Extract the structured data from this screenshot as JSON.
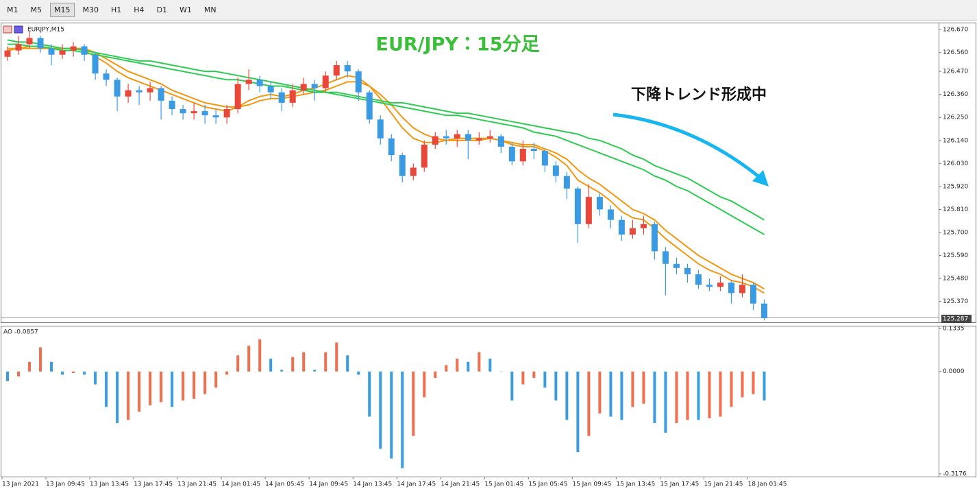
{
  "toolbar": {
    "timeframes": [
      "M1",
      "M5",
      "M15",
      "M30",
      "H1",
      "H4",
      "D1",
      "W1",
      "MN"
    ]
  },
  "chart_data": [
    {
      "type": "candlestick",
      "symbol_label": "EURJPY,M15",
      "title": "EUR/JPY：15分足",
      "annotation": "下降トレンド形成中",
      "up_color": "#e8483a",
      "down_color": "#3a9ae2",
      "open": [
        126.54,
        126.57,
        126.6,
        126.63,
        126.58,
        126.55,
        126.57,
        126.59,
        126.55,
        126.46,
        126.43,
        126.35,
        126.38,
        126.37,
        126.39,
        126.33,
        126.29,
        126.27,
        126.28,
        126.26,
        126.25,
        126.29,
        126.41,
        126.43,
        126.4,
        126.37,
        126.32,
        126.38,
        126.41,
        126.39,
        126.45,
        126.5,
        126.47,
        126.37,
        126.24,
        126.15,
        126.07,
        125.97,
        126.01,
        126.12,
        126.16,
        126.15,
        126.17,
        126.14,
        126.15,
        126.16,
        126.11,
        126.04,
        126.1,
        126.09,
        126.02,
        125.97,
        125.91,
        125.74,
        125.87,
        125.81,
        125.76,
        125.69,
        125.72,
        125.74,
        125.61,
        125.55,
        125.53,
        125.5,
        125.45,
        125.44,
        125.46,
        125.41,
        125.45,
        125.36
      ],
      "high": [
        126.59,
        126.64,
        126.66,
        126.64,
        126.6,
        126.6,
        126.61,
        126.6,
        126.56,
        126.48,
        126.44,
        126.41,
        126.4,
        126.42,
        126.4,
        126.35,
        126.31,
        126.32,
        126.31,
        126.29,
        126.31,
        126.44,
        126.48,
        126.45,
        126.42,
        126.39,
        126.41,
        126.44,
        126.43,
        126.47,
        126.52,
        126.52,
        126.48,
        126.38,
        126.26,
        126.17,
        126.08,
        126.03,
        126.14,
        126.18,
        126.19,
        126.19,
        126.19,
        126.18,
        126.19,
        126.17,
        126.13,
        126.14,
        126.13,
        126.1,
        126.04,
        125.99,
        125.92,
        125.93,
        125.89,
        125.83,
        125.78,
        125.76,
        125.78,
        125.75,
        125.63,
        125.58,
        125.55,
        125.52,
        125.48,
        125.49,
        125.47,
        125.5,
        125.46,
        125.38
      ],
      "low": [
        126.52,
        126.55,
        126.58,
        126.56,
        126.5,
        126.53,
        126.54,
        126.52,
        126.43,
        126.4,
        126.28,
        126.32,
        126.31,
        126.33,
        126.24,
        126.26,
        126.24,
        126.24,
        126.22,
        126.22,
        126.22,
        126.27,
        126.38,
        126.37,
        126.34,
        126.28,
        126.3,
        126.36,
        126.33,
        126.37,
        126.43,
        126.44,
        126.33,
        126.22,
        126.12,
        126.04,
        125.94,
        125.95,
        125.99,
        126.1,
        126.12,
        126.11,
        126.05,
        126.12,
        126.13,
        126.08,
        126.02,
        126.02,
        126.05,
        125.99,
        125.94,
        125.86,
        125.65,
        125.72,
        125.78,
        125.72,
        125.66,
        125.67,
        125.69,
        125.57,
        125.4,
        125.5,
        125.46,
        125.43,
        125.42,
        125.42,
        125.36,
        125.39,
        125.33,
        125.28
      ],
      "close": [
        126.57,
        126.6,
        126.63,
        126.58,
        126.55,
        126.57,
        126.59,
        126.55,
        126.46,
        126.43,
        126.35,
        126.38,
        126.37,
        126.39,
        126.33,
        126.29,
        126.27,
        126.28,
        126.26,
        126.25,
        126.29,
        126.41,
        126.43,
        126.4,
        126.37,
        126.32,
        126.38,
        126.41,
        126.39,
        126.45,
        126.5,
        126.47,
        126.37,
        126.24,
        126.15,
        126.07,
        125.97,
        126.01,
        126.12,
        126.16,
        126.15,
        126.17,
        126.14,
        126.15,
        126.16,
        126.11,
        126.04,
        126.1,
        126.09,
        126.02,
        125.97,
        125.91,
        125.74,
        125.87,
        125.81,
        125.76,
        125.69,
        125.72,
        125.74,
        125.61,
        125.55,
        125.53,
        125.5,
        125.45,
        125.44,
        125.46,
        125.41,
        125.45,
        125.36,
        125.29
      ],
      "lines": [
        {
          "color": "#f5960f",
          "values": [
            126.57,
            126.58,
            126.59,
            126.59,
            126.58,
            126.58,
            126.58,
            126.57,
            126.54,
            126.51,
            126.47,
            126.44,
            126.42,
            126.4,
            126.38,
            126.36,
            126.34,
            126.32,
            126.3,
            126.29,
            126.28,
            126.3,
            126.33,
            126.35,
            126.36,
            126.35,
            126.36,
            126.38,
            126.39,
            126.41,
            126.43,
            126.45,
            126.44,
            126.4,
            126.34,
            126.27,
            126.2,
            126.15,
            126.13,
            126.13,
            126.14,
            126.15,
            126.15,
            126.15,
            126.15,
            126.14,
            126.12,
            126.11,
            126.11,
            126.09,
            126.06,
            126.02,
            125.95,
            125.92,
            125.89,
            125.85,
            125.8,
            125.77,
            125.76,
            125.72,
            125.67,
            125.63,
            125.59,
            125.55,
            125.52,
            125.5,
            125.47,
            125.46,
            125.44,
            125.41
          ]
        },
        {
          "color": "#f5960f",
          "values": [
            126.58,
            126.58,
            126.58,
            126.58,
            126.58,
            126.58,
            126.58,
            126.58,
            126.56,
            126.53,
            126.5,
            126.47,
            126.45,
            126.43,
            126.41,
            126.38,
            126.36,
            126.34,
            126.32,
            126.31,
            126.3,
            126.3,
            126.31,
            126.33,
            126.34,
            126.34,
            126.35,
            126.36,
            126.37,
            126.38,
            126.4,
            126.42,
            126.42,
            126.4,
            126.36,
            126.31,
            126.25,
            126.2,
            126.17,
            126.15,
            126.14,
            126.14,
            126.14,
            126.14,
            126.15,
            126.14,
            126.13,
            126.12,
            126.12,
            126.1,
            126.08,
            126.05,
            126.0,
            125.96,
            125.93,
            125.89,
            125.85,
            125.81,
            125.79,
            125.76,
            125.71,
            125.67,
            125.63,
            125.59,
            125.56,
            125.53,
            125.5,
            125.48,
            125.46,
            125.43
          ]
        },
        {
          "color": "#2ecb52",
          "values": [
            126.62,
            126.61,
            126.61,
            126.6,
            126.59,
            126.58,
            126.58,
            126.57,
            126.56,
            126.55,
            126.54,
            126.53,
            126.52,
            126.52,
            126.51,
            126.5,
            126.49,
            126.48,
            126.47,
            126.47,
            126.46,
            126.45,
            126.44,
            126.43,
            126.42,
            126.41,
            126.4,
            126.39,
            126.38,
            126.37,
            126.37,
            126.36,
            126.35,
            126.34,
            126.33,
            126.32,
            126.32,
            126.31,
            126.3,
            126.29,
            126.28,
            126.27,
            126.27,
            126.26,
            126.25,
            126.24,
            126.23,
            126.22,
            126.21,
            126.2,
            126.19,
            126.18,
            126.17,
            126.15,
            126.14,
            126.12,
            126.1,
            126.07,
            126.05,
            126.02,
            126.0,
            125.98,
            125.96,
            125.93,
            125.9,
            125.87,
            125.85,
            125.82,
            125.79,
            125.76
          ]
        },
        {
          "color": "#2ecb52",
          "values": [
            126.6,
            126.6,
            126.59,
            126.59,
            126.58,
            126.57,
            126.57,
            126.56,
            126.55,
            126.54,
            126.53,
            126.52,
            126.51,
            126.5,
            126.49,
            126.48,
            126.47,
            126.46,
            126.45,
            126.44,
            126.43,
            126.43,
            126.42,
            126.41,
            126.4,
            126.4,
            126.39,
            126.38,
            126.37,
            126.37,
            126.36,
            126.35,
            126.34,
            126.33,
            126.32,
            126.31,
            126.3,
            126.29,
            126.28,
            126.27,
            126.26,
            126.26,
            126.25,
            126.24,
            126.23,
            126.22,
            126.21,
            126.2,
            126.18,
            126.17,
            126.16,
            126.14,
            126.12,
            126.1,
            126.08,
            126.06,
            126.04,
            126.02,
            126.0,
            125.97,
            125.95,
            125.92,
            125.9,
            125.87,
            125.84,
            125.81,
            125.78,
            125.75,
            125.72,
            125.69
          ]
        }
      ],
      "xlim": [
        0,
        85.4
      ],
      "xticks": [
        {
          "value": 0,
          "label": "13 Jan 2021"
        },
        {
          "value": 4,
          "label": "13 Jan 09:45"
        },
        {
          "value": 8,
          "label": "13 Jan 13:45"
        },
        {
          "value": 12,
          "label": "13 Jan 17:45"
        },
        {
          "value": 16,
          "label": "13 Jan 21:45"
        },
        {
          "value": 20,
          "label": "14 Jan 01:45"
        },
        {
          "value": 24,
          "label": "14 Jan 05:45"
        },
        {
          "value": 28,
          "label": "14 Jan 09:45"
        },
        {
          "value": 32,
          "label": "14 Jan 13:45"
        },
        {
          "value": 36,
          "label": "14 Jan 17:45"
        },
        {
          "value": 40,
          "label": "14 Jan 21:45"
        },
        {
          "value": 44,
          "label": "15 Jan 01:45"
        },
        {
          "value": 48,
          "label": "15 Jan 05:45"
        },
        {
          "value": 52,
          "label": "15 Jan 09:45"
        },
        {
          "value": 56,
          "label": "15 Jan 13:45"
        },
        {
          "value": 60,
          "label": "15 Jan 17:45"
        },
        {
          "value": 64,
          "label": "15 Jan 21:45"
        },
        {
          "value": 68,
          "label": "18 Jan 01:45"
        }
      ],
      "ylim": [
        125.277,
        126.7
      ],
      "yticks": [
        {
          "value": 126.67,
          "label": "126.670"
        },
        {
          "value": 126.56,
          "label": "126.560"
        },
        {
          "value": 126.47,
          "label": "126.470"
        },
        {
          "value": 126.36,
          "label": "126.360"
        },
        {
          "value": 126.25,
          "label": "126.250"
        },
        {
          "value": 126.14,
          "label": "126.140"
        },
        {
          "value": 126.03,
          "label": "126.030"
        },
        {
          "value": 125.92,
          "label": "125.920"
        },
        {
          "value": 125.81,
          "label": "125.810"
        },
        {
          "value": 125.7,
          "label": "125.700"
        },
        {
          "value": 125.59,
          "label": "125.590"
        },
        {
          "value": 125.48,
          "label": "125.480"
        },
        {
          "value": 125.37,
          "label": "125.370"
        }
      ],
      "last_price": {
        "value": 125.287,
        "label": "125.287"
      }
    },
    {
      "type": "bar",
      "label": "AO -0.0857",
      "up_color": "#f26e4e",
      "down_color": "#3a9de4",
      "values": [
        -0.03,
        -0.015,
        0.03,
        0.075,
        0.03,
        -0.01,
        -0.005,
        -0.01,
        -0.04,
        -0.11,
        -0.16,
        -0.15,
        -0.125,
        -0.105,
        -0.095,
        -0.11,
        -0.09,
        -0.085,
        -0.07,
        -0.05,
        -0.01,
        0.05,
        0.08,
        0.1,
        0.04,
        0.005,
        0.045,
        0.06,
        0.005,
        0.06,
        0.09,
        0.05,
        -0.01,
        -0.14,
        -0.24,
        -0.27,
        -0.3,
        -0.2,
        -0.08,
        -0.02,
        0.02,
        0.04,
        0.03,
        0.06,
        0.04,
        0.0,
        -0.09,
        -0.04,
        -0.02,
        -0.05,
        -0.09,
        -0.15,
        -0.25,
        -0.2,
        -0.13,
        -0.14,
        -0.15,
        -0.11,
        -0.1,
        -0.16,
        -0.19,
        -0.16,
        -0.15,
        -0.15,
        -0.145,
        -0.14,
        -0.11,
        -0.08,
        -0.07,
        -0.09
      ],
      "ylim": [
        -0.3176,
        0.1335
      ],
      "yticks": [
        {
          "value": 0.1335,
          "label": "0.1335"
        },
        {
          "value": 0,
          "label": "0.0000"
        },
        {
          "value": -0.3176,
          "label": "-0.3176"
        }
      ]
    }
  ]
}
